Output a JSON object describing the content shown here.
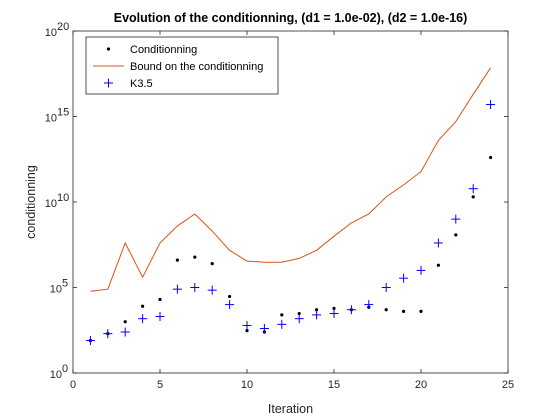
{
  "chart_data": {
    "type": "line",
    "title": "Evolution of the conditionning, (d1 = 1.0e-02), (d2 = 1.0e-16)",
    "xlabel": "Iteration",
    "ylabel": "conditionning",
    "xlim": [
      0,
      25
    ],
    "ylim": [
      1,
      1e+20
    ],
    "yscale": "log",
    "grid": false,
    "legend_position": "top-left",
    "x_ticks": [
      {
        "value": 0,
        "label": "0"
      },
      {
        "value": 5,
        "label": "5"
      },
      {
        "value": 10,
        "label": "10"
      },
      {
        "value": 15,
        "label": "15"
      },
      {
        "value": 20,
        "label": "20"
      },
      {
        "value": 25,
        "label": "25"
      }
    ],
    "y_ticks": [
      {
        "value": 1,
        "base": "10",
        "exp": "0"
      },
      {
        "value": 100000,
        "base": "10",
        "exp": "5"
      },
      {
        "value": 10000000000,
        "base": "10",
        "exp": "10"
      },
      {
        "value": 1000000000000000.0,
        "base": "10",
        "exp": "15"
      },
      {
        "value": 1e+20,
        "base": "10",
        "exp": "20"
      }
    ],
    "series": [
      {
        "name": "Conditionning",
        "marker": "dot",
        "color": "#000000",
        "x": [
          1,
          2,
          3,
          4,
          5,
          6,
          7,
          8,
          9,
          10,
          11,
          12,
          13,
          14,
          15,
          16,
          17,
          18,
          19,
          20,
          21,
          22,
          23,
          24
        ],
        "y": [
          80,
          200,
          1000,
          8000,
          20000,
          4000000,
          6000000,
          2500000,
          30000,
          300,
          250,
          2500,
          3000,
          5000,
          6000,
          5000,
          7000,
          5000,
          4000,
          4000,
          2000000,
          120000000,
          20000000000,
          4000000000000
        ]
      },
      {
        "name": "Bound on the conditionning",
        "marker": "line",
        "color": "#D95319",
        "x": [
          1,
          2,
          3,
          4,
          5,
          6,
          7,
          8,
          9,
          10,
          11,
          12,
          13,
          14,
          15,
          16,
          17,
          18,
          19,
          20,
          21,
          22,
          23,
          24
        ],
        "y": [
          60000,
          80000,
          40000000,
          400000,
          40000000,
          400000000,
          2000000000,
          200000000,
          15000000,
          3500000,
          3000000,
          3000000,
          5000000,
          15000000,
          100000000,
          600000000,
          2000000000,
          20000000000,
          100000000000,
          600000000000,
          40000000000000,
          500000000000000,
          20000000000000000,
          700000000000000000
        ]
      },
      {
        "name": "K3.5",
        "marker": "plus",
        "color": "#0000FF",
        "x": [
          1,
          2,
          3,
          4,
          5,
          6,
          7,
          8,
          9,
          10,
          11,
          12,
          13,
          14,
          15,
          16,
          17,
          18,
          19,
          20,
          21,
          22,
          23,
          24
        ],
        "y": [
          80,
          200,
          250,
          1500,
          2000,
          80000,
          100000,
          70000,
          10000,
          600,
          400,
          700,
          1500,
          2500,
          3000,
          5000,
          10000,
          100000,
          350000,
          1000000,
          40000000,
          1000000000,
          60000000000,
          5000000000000000
        ]
      }
    ]
  }
}
